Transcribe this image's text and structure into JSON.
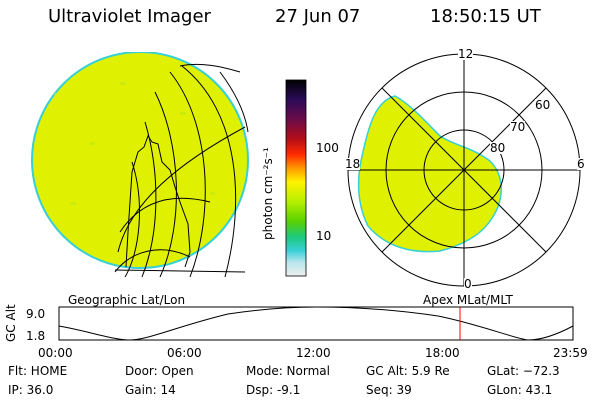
{
  "header": {
    "title": "Ultraviolet Imager",
    "date": "27 Jun 07",
    "time": "18:50:15 UT"
  },
  "colorbar": {
    "label": "photon cm⁻²s⁻¹",
    "ticks": [
      "100",
      "10"
    ],
    "colors": [
      "#000000",
      "#2b0b57",
      "#6a0c4a",
      "#b30d18",
      "#ff2a00",
      "#ff9a00",
      "#fff200",
      "#b6f000",
      "#5ad100",
      "#1ec97c",
      "#37d0d7",
      "#b8e6ec",
      "#eeeeee"
    ]
  },
  "left_panel": {
    "label": "Geographic Lat/Lon",
    "disk_color": "#dff000"
  },
  "right_panel": {
    "label": "Apex MLat/MLT",
    "mlt_labels": {
      "top": "12",
      "bottom": "0",
      "left": "18",
      "right": "6"
    },
    "lat_labels": [
      "60",
      "70",
      "80"
    ]
  },
  "altitude_plot": {
    "label": "GC Alt",
    "y_ticks": [
      "9.0",
      "1.8"
    ],
    "x_ticks": [
      "00:00",
      "06:00",
      "12:00",
      "18:00",
      "23:59"
    ],
    "current_marker_color": "#ff0000"
  },
  "status": {
    "flt": "Flt: HOME",
    "ip": "IP: 36.0",
    "door": "Door: Open",
    "gain": "Gain: 14",
    "mode": "Mode: Normal",
    "dsp": "Dsp:    -9.1",
    "gc_alt": "GC Alt: 5.9 Re",
    "seq": "Seq: 39",
    "glat": "GLat: −72.3",
    "glon": "GLon:  43.1"
  }
}
